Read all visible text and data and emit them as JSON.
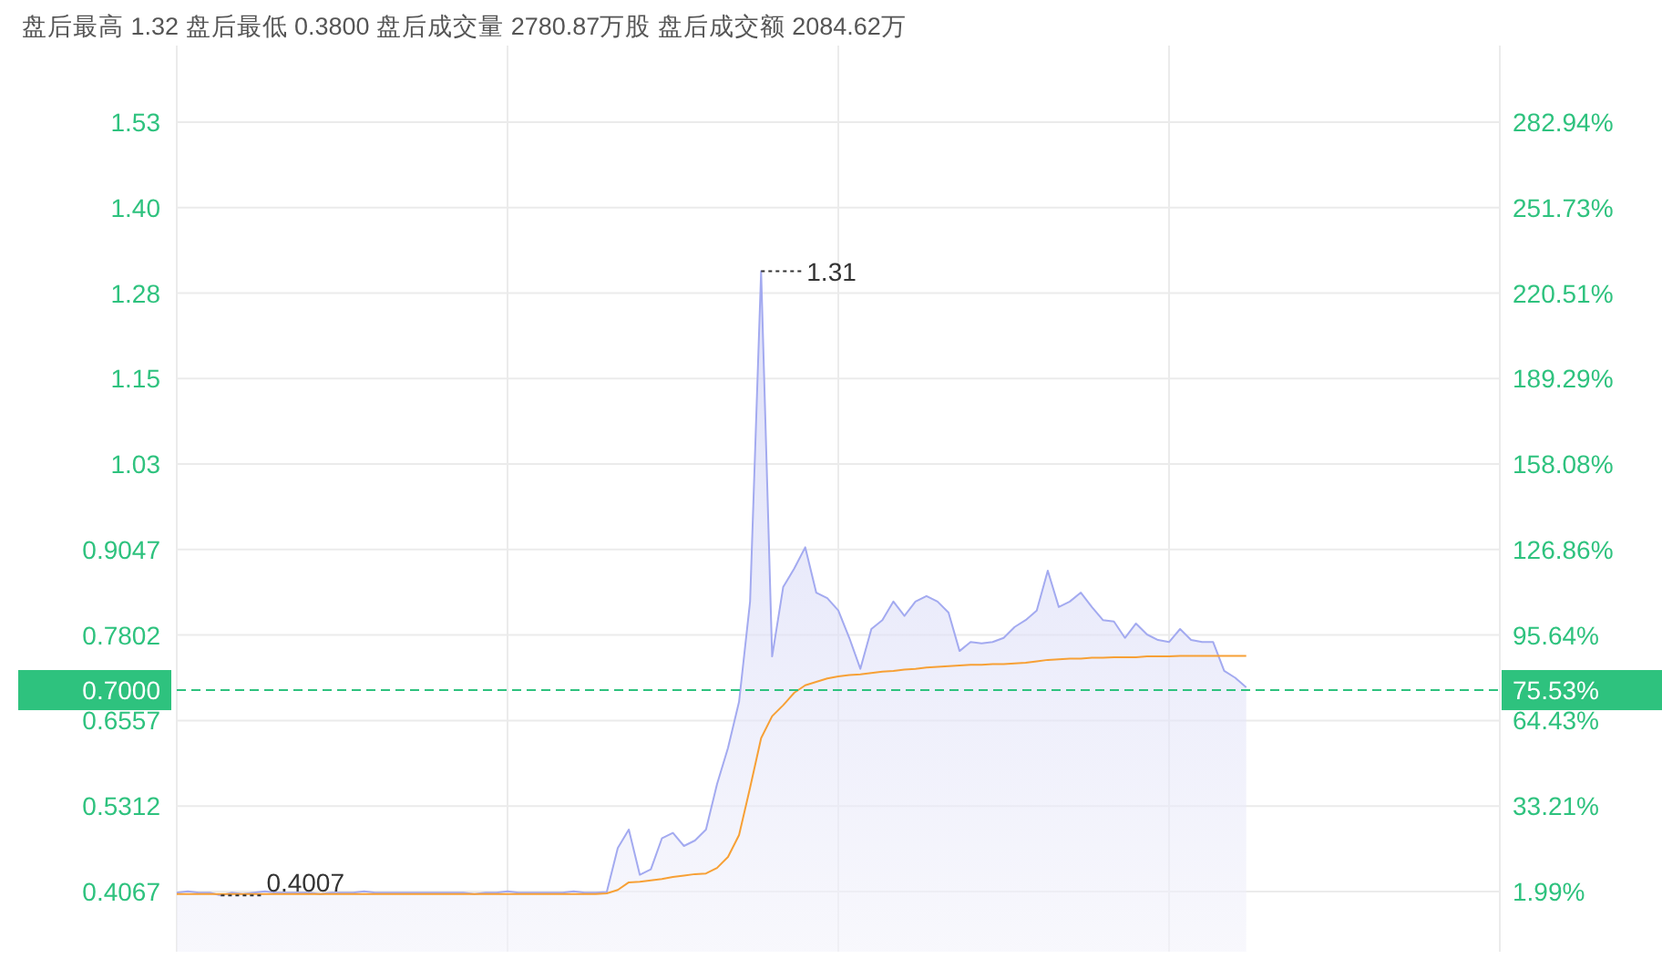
{
  "chart_data": {
    "type": "line",
    "title": "盘后最高 1.32 盘后最低 0.3800 盘后成交量 2780.87万股 盘后成交额 2084.62万",
    "categories": [
      null,
      null,
      null,
      null,
      null,
      null,
      null,
      null,
      null,
      null,
      null,
      null,
      null,
      null,
      null,
      null,
      null,
      null,
      null,
      null,
      null,
      null,
      null,
      null,
      null,
      null,
      null,
      null,
      null,
      null,
      null,
      null,
      null,
      null,
      null,
      null,
      null,
      null,
      null,
      null,
      null,
      null,
      null,
      null,
      null,
      null,
      null,
      null,
      null,
      null,
      null,
      null,
      null,
      null,
      null,
      null,
      null,
      null,
      null,
      null,
      null,
      null,
      null,
      null,
      null,
      null,
      null,
      null,
      null,
      null,
      null,
      null,
      null,
      null,
      null,
      null,
      null,
      null,
      null,
      null,
      null,
      null,
      null,
      null,
      null,
      null,
      null,
      null,
      null,
      null,
      null,
      null,
      null,
      null,
      null,
      null,
      null,
      null,
      null,
      null,
      null,
      null,
      null,
      null,
      null,
      null,
      null,
      null,
      null,
      null,
      null,
      null,
      null,
      null,
      null,
      null,
      null,
      null,
      null,
      null,
      null
    ],
    "series": [
      {
        "type": "area",
        "color": "#a3aaf0",
        "values": [
          0.405,
          0.407,
          0.405,
          0.405,
          0.401,
          0.405,
          0.403,
          0.405,
          0.407,
          0.405,
          0.405,
          0.405,
          0.405,
          0.403,
          0.405,
          0.405,
          0.405,
          0.407,
          0.405,
          0.405,
          0.405,
          0.405,
          0.405,
          0.405,
          0.405,
          0.405,
          0.405,
          0.403,
          0.405,
          0.405,
          0.407,
          0.405,
          0.405,
          0.405,
          0.405,
          0.405,
          0.407,
          0.405,
          0.405,
          0.406,
          0.47,
          0.497,
          0.431,
          0.439,
          0.484,
          0.492,
          0.473,
          0.481,
          0.497,
          0.563,
          0.616,
          0.683,
          0.829,
          1.31,
          0.749,
          0.85,
          0.877,
          0.908,
          0.842,
          0.834,
          0.816,
          0.776,
          0.731,
          0.789,
          0.802,
          0.829,
          0.808,
          0.829,
          0.837,
          0.829,
          0.813,
          0.757,
          0.77,
          0.768,
          0.77,
          0.776,
          0.792,
          0.802,
          0.816,
          0.874,
          0.821,
          0.829,
          0.842,
          0.821,
          0.802,
          0.8,
          0.776,
          0.797,
          0.781,
          0.773,
          0.77,
          0.789,
          0.773,
          0.77,
          0.77,
          0.728,
          0.718,
          0.704,
          null,
          null,
          null,
          null,
          null,
          null,
          null,
          null,
          null,
          null,
          null,
          null,
          null,
          null,
          null,
          null,
          null,
          null,
          null,
          null,
          null,
          null,
          null
        ]
      },
      {
        "color": "#f7a035",
        "values": [
          0.403,
          0.403,
          0.403,
          0.403,
          0.403,
          0.403,
          0.403,
          0.403,
          0.403,
          0.403,
          0.403,
          0.403,
          0.403,
          0.403,
          0.403,
          0.403,
          0.403,
          0.403,
          0.403,
          0.403,
          0.403,
          0.403,
          0.403,
          0.403,
          0.403,
          0.403,
          0.403,
          0.403,
          0.403,
          0.403,
          0.403,
          0.403,
          0.403,
          0.403,
          0.403,
          0.403,
          0.403,
          0.403,
          0.403,
          0.404,
          0.409,
          0.42,
          0.421,
          0.423,
          0.425,
          0.428,
          0.43,
          0.432,
          0.433,
          0.441,
          0.457,
          0.489,
          0.558,
          0.63,
          0.662,
          0.678,
          0.696,
          0.707,
          0.712,
          0.717,
          0.72,
          0.722,
          0.723,
          0.725,
          0.727,
          0.728,
          0.73,
          0.731,
          0.733,
          0.734,
          0.735,
          0.736,
          0.737,
          0.737,
          0.738,
          0.738,
          0.739,
          0.74,
          0.742,
          0.744,
          0.745,
          0.746,
          0.746,
          0.747,
          0.747,
          0.748,
          0.748,
          0.748,
          0.749,
          0.749,
          0.749,
          0.75,
          0.75,
          0.75,
          0.75,
          0.75,
          0.75,
          0.75,
          null,
          null,
          null,
          null,
          null,
          null,
          null,
          null,
          null,
          null,
          null,
          null,
          null,
          null,
          null,
          null,
          null,
          null,
          null,
          null,
          null,
          null,
          null
        ]
      }
    ],
    "ylim": [
      0.319,
      1.6387
    ],
    "yticks": [
      0.4067,
      0.5312,
      0.6557,
      0.7802,
      0.9047,
      {
        "value": 1.0292,
        "label": "1.03"
      },
      {
        "value": 1.1537,
        "label": "1.15"
      },
      {
        "value": 1.2782,
        "label": "1.28"
      },
      {
        "value": 1.4027,
        "label": "1.40"
      },
      {
        "value": 1.5272,
        "label": "1.53"
      }
    ],
    "y2lim": [
      -20.0,
      310.9
    ],
    "y2ticks": [
      {
        "value": 1.99,
        "label": "1.99%"
      },
      {
        "value": 33.21,
        "label": "33.21%"
      },
      {
        "value": 64.43,
        "label": "64.43%"
      },
      {
        "value": 95.64,
        "label": "95.64%"
      },
      {
        "value": 126.86,
        "label": "126.86%"
      },
      {
        "value": 158.08,
        "label": "158.08%"
      },
      {
        "value": 189.29,
        "label": "189.29%"
      },
      {
        "value": 220.51,
        "label": "220.51%"
      },
      {
        "value": 251.73,
        "label": "251.73%"
      },
      {
        "value": 282.94,
        "label": "282.94%"
      }
    ],
    "ref_lines": [
      {
        "axis": "y",
        "value": 0.7,
        "label": "0.7000",
        "color": "#2ec27e",
        "line_style": "dashed"
      }
    ],
    "annotations": [
      "1.31",
      "0.4007",
      "75.53%"
    ],
    "grid": true,
    "marker": "none",
    "line_style": "solid"
  }
}
